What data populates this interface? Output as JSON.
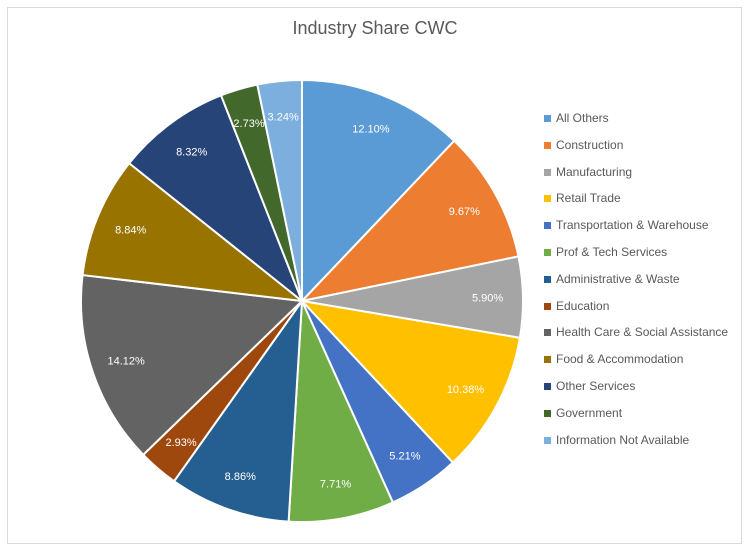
{
  "chart_data": {
    "type": "pie",
    "title": "Industry Share CWC",
    "legend_position": "right",
    "categories": [
      "All Others",
      "Construction",
      "Manufacturing",
      "Retail Trade",
      "Transportation & Warehouse",
      "Prof & Tech Services",
      "Administrative & Waste",
      "Education",
      "Health Care & Social Assistance",
      "Food & Accommodation",
      "Other Services",
      "Government",
      "Information Not Available"
    ],
    "values": [
      12.1,
      9.67,
      5.9,
      10.38,
      5.21,
      7.71,
      8.86,
      2.93,
      14.12,
      8.84,
      8.32,
      2.73,
      3.24
    ],
    "data_labels": [
      "12.10%",
      "9.67%",
      "5.90%",
      "10.38%",
      "5.21%",
      "7.71%",
      "8.86%",
      "2.93%",
      "14.12%",
      "8.84%",
      "8.32%",
      "2.73%",
      "3.24%"
    ],
    "colors": [
      "#5B9BD5",
      "#ED7D31",
      "#A5A5A5",
      "#FFC000",
      "#4472C4",
      "#70AD47",
      "#255E91",
      "#9E480E",
      "#636363",
      "#997300",
      "#264478",
      "#43682B",
      "#7CAFDD"
    ]
  }
}
